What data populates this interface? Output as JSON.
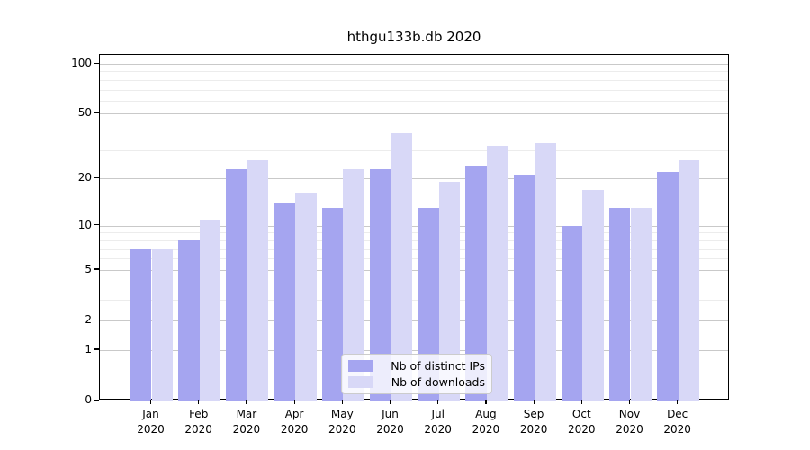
{
  "chart_data": {
    "type": "bar",
    "title": "hthgu133b.db 2020",
    "categories": [
      "Jan 2020",
      "Feb 2020",
      "Mar 2020",
      "Apr 2020",
      "May 2020",
      "Jun 2020",
      "Jul 2020",
      "Aug 2020",
      "Sep 2020",
      "Oct 2020",
      "Nov 2020",
      "Dec 2020"
    ],
    "series": [
      {
        "name": "Nb of distinct IPs",
        "color": "#a5a5f0",
        "values": [
          7,
          8,
          23,
          14,
          13,
          23,
          13,
          24,
          21,
          10,
          13,
          22
        ]
      },
      {
        "name": "Nb of downloads",
        "color": "#d8d8f7",
        "values": [
          7,
          11,
          26,
          16,
          23,
          38,
          19,
          32,
          33,
          17,
          13,
          26
        ]
      }
    ],
    "xlabel": "",
    "ylabel": "",
    "y_axis": {
      "scale": "log1p",
      "range": [
        0,
        100
      ],
      "major_ticks": [
        0,
        1,
        2,
        5,
        10,
        20,
        50,
        100
      ],
      "major_tick_labels": [
        "0",
        "1",
        "2",
        "5",
        "10",
        "20",
        "50",
        "100"
      ],
      "minor_gridlines": [
        3,
        4,
        6,
        7,
        8,
        9,
        30,
        40,
        60,
        70,
        80,
        90
      ]
    },
    "grid": true,
    "legend_position": "bottom-center"
  },
  "colors": {
    "bar_distinct_ips": "#a5a5f0",
    "bar_downloads": "#d8d8f7",
    "major_gridline": "#c9c9c9",
    "minor_gridline": "#ececec",
    "axis_spine": "#000000",
    "legend_border": "#cccccc",
    "legend_background": "rgba(255,255,255,0.8)",
    "text": "#000000"
  }
}
